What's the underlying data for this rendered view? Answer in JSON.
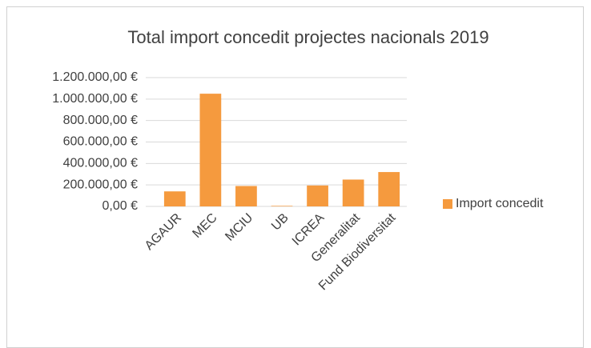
{
  "chart_data": {
    "type": "bar",
    "title": "Total import concedit projectes nacionals 2019",
    "categories": [
      "AGAUR",
      "MEC",
      "MCIU",
      "UB",
      "ICREA",
      "Generalitat",
      "Fund Biodiversitat"
    ],
    "series": [
      {
        "name": "Import concedit",
        "color": "#f59a3e",
        "values": [
          140000,
          1050000,
          190000,
          5000,
          195000,
          250000,
          320000
        ]
      }
    ],
    "ylim": [
      0,
      1200000
    ],
    "yticks": [
      {
        "value": 0,
        "label": "0,00 €"
      },
      {
        "value": 200000,
        "label": "200.000,00 €"
      },
      {
        "value": 400000,
        "label": "400.000,00 €"
      },
      {
        "value": 600000,
        "label": "600.000,00 €"
      },
      {
        "value": 800000,
        "label": "800.000,00 €"
      },
      {
        "value": 1000000,
        "label": "1.000.000,00 €"
      },
      {
        "value": 1200000,
        "label": "1.200.000,00 €"
      }
    ],
    "grid": true,
    "legend": "right"
  }
}
